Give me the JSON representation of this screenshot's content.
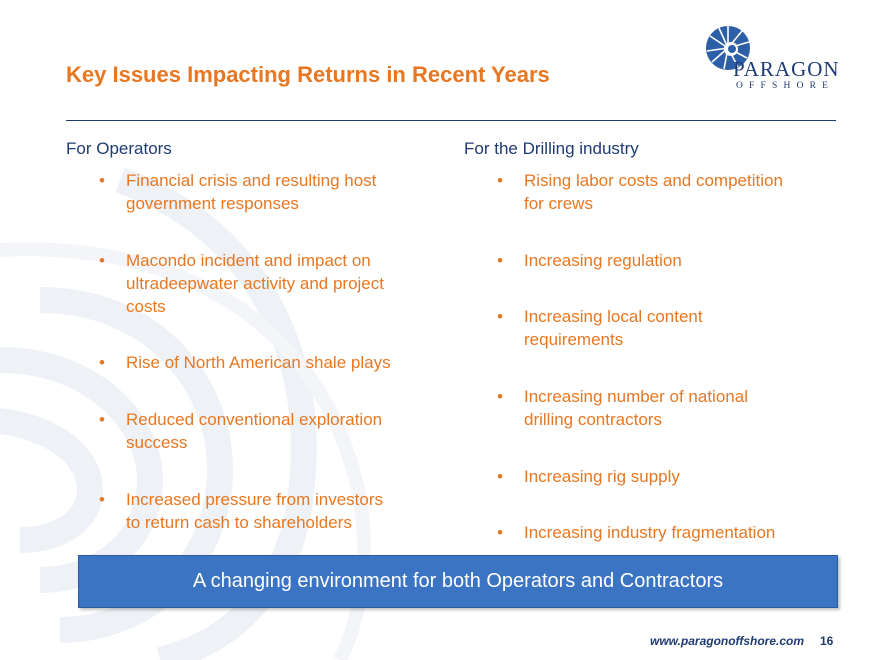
{
  "slide": {
    "title": "Key Issues Impacting Returns in Recent Years",
    "logo": {
      "name": "PARAGON",
      "sub": "OFFSHORE",
      "icon": "nautilus-shell-icon"
    },
    "left_column": {
      "heading": "For Operators",
      "bullets": [
        {
          "lines": [
            "Financial crisis and resulting host",
            "government responses"
          ]
        },
        {
          "lines": [
            "Macondo incident and impact on",
            "ultradeepwater activity and project",
            "costs"
          ]
        },
        {
          "lines": [
            "Rise of North American shale plays"
          ]
        },
        {
          "lines": [
            "Reduced conventional exploration",
            "success"
          ]
        },
        {
          "lines": [
            "Increased pressure from investors",
            "to return cash to shareholders"
          ]
        }
      ]
    },
    "right_column": {
      "heading": "For the Drilling industry",
      "bullets": [
        {
          "lines": [
            "Rising labor costs and competition",
            "for crews"
          ]
        },
        {
          "lines": [
            "Increasing regulation"
          ]
        },
        {
          "lines": [
            "Increasing local content",
            "requirements"
          ]
        },
        {
          "lines": [
            "Increasing number of national",
            "drilling contractors"
          ]
        },
        {
          "lines": [
            "Increasing rig supply"
          ]
        },
        {
          "lines": [
            "Increasing industry fragmentation"
          ]
        }
      ]
    },
    "banner": "A changing environment for both Operators and Contractors",
    "footer": {
      "url": "www.paragonoffshore.com",
      "page": "16"
    },
    "bullet_char": "•",
    "colors": {
      "accent": "#e87722",
      "navy": "#1f3b73",
      "banner": "#3a74c2"
    }
  }
}
